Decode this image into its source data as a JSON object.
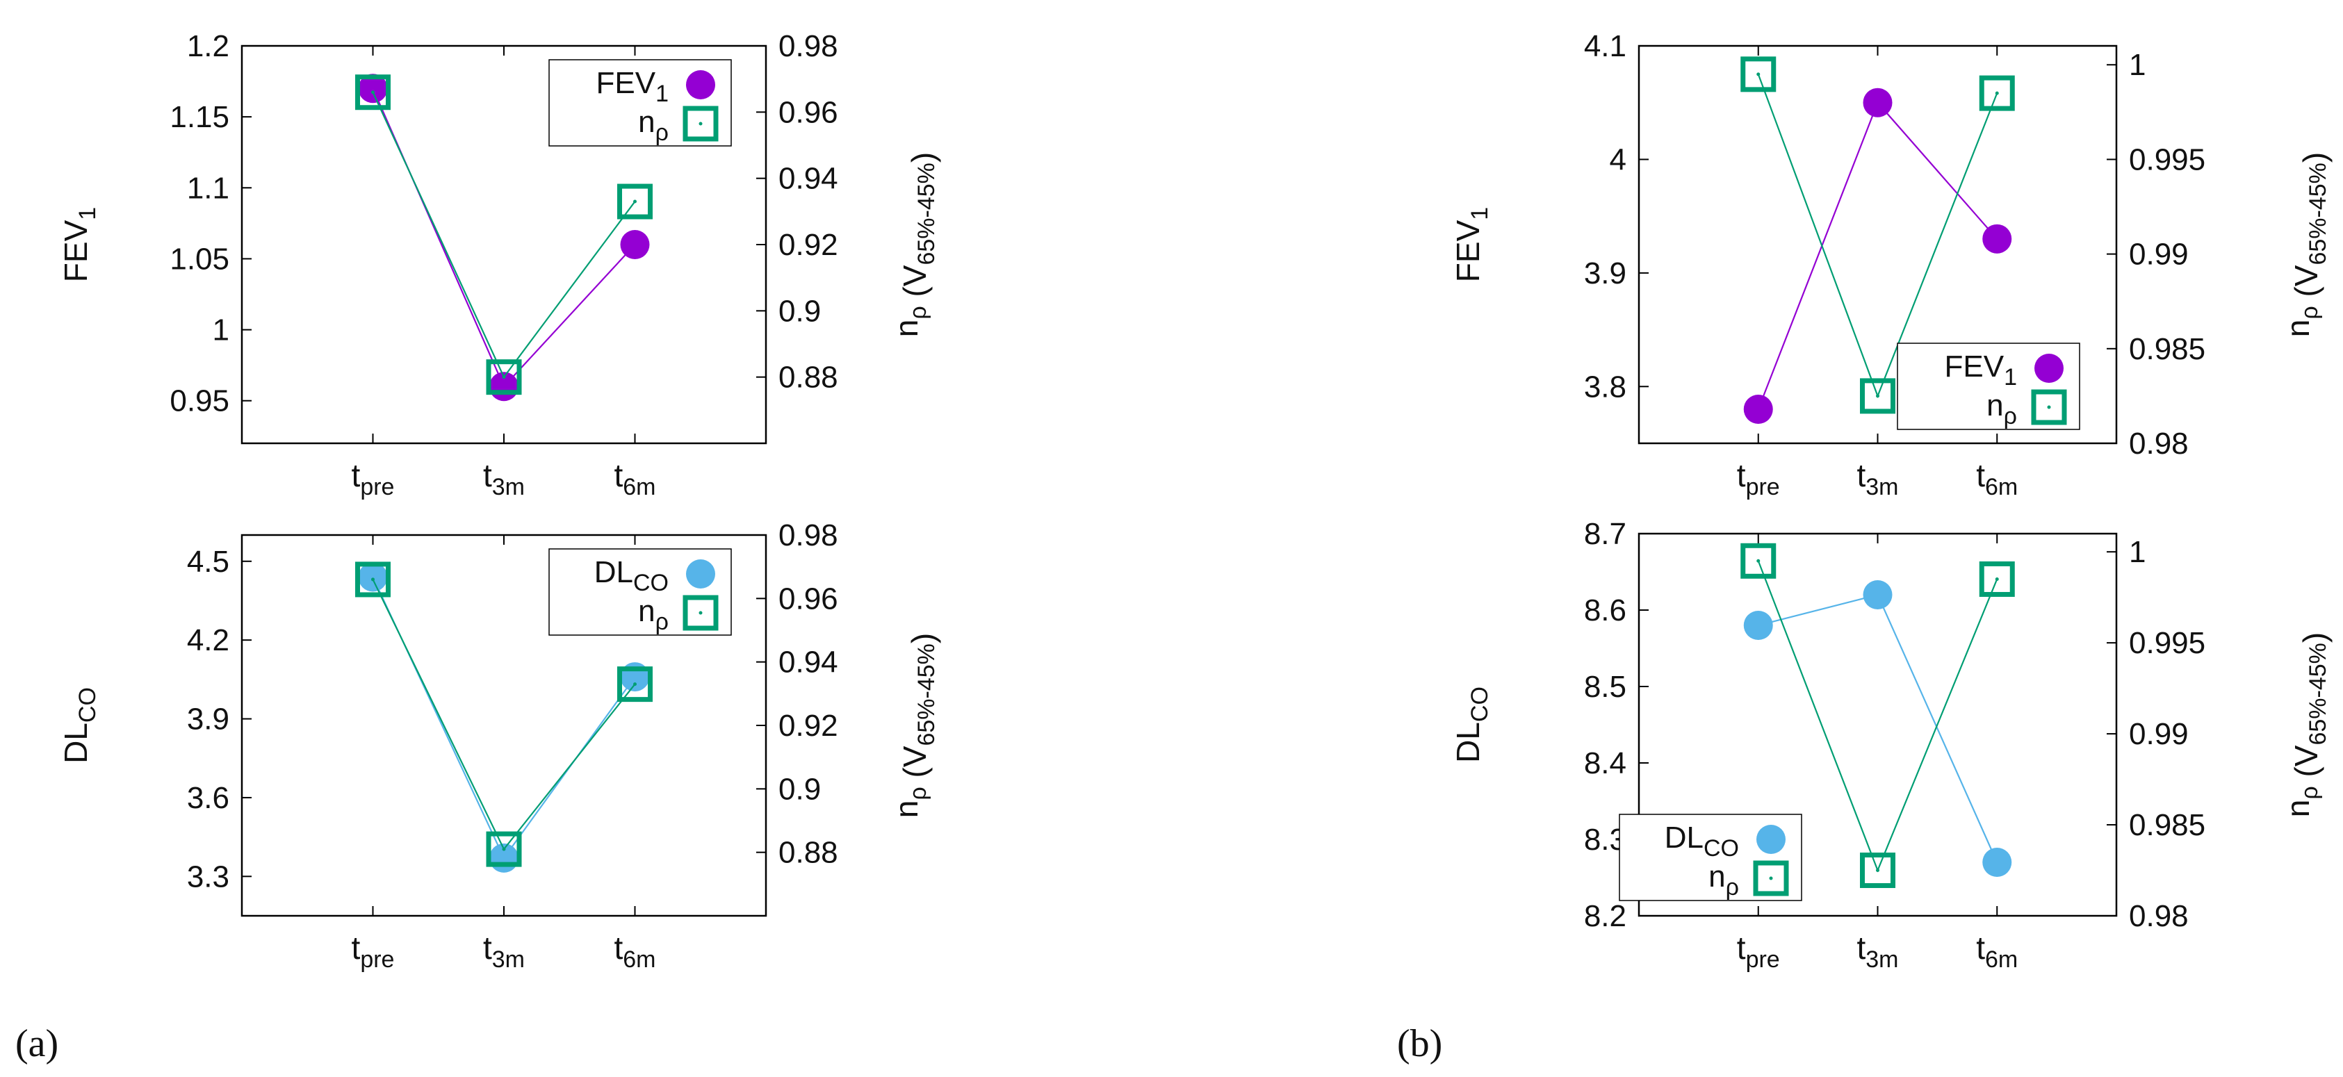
{
  "panel_labels": {
    "a": "(a)",
    "b": "(b)"
  },
  "colors": {
    "fev": "#9400d3",
    "dlco": "#56b4e9",
    "n_rho": "#009e73",
    "grid": "#000000"
  },
  "chart_data": [
    {
      "id": "a-top",
      "type": "line",
      "categories": [
        "t_pre",
        "t_3m",
        "t_6m"
      ],
      "ylabel": "FEV_1",
      "y2label": "n_ρ (V_65%-45%)",
      "ylim": [
        0.92,
        1.2
      ],
      "y2lim": [
        0.86,
        0.98
      ],
      "yticks": [
        0.95,
        1,
        1.05,
        1.1,
        1.15,
        1.2
      ],
      "yticklabels": [
        "0.95",
        "1",
        "1.05",
        "1.1",
        "1.15",
        "1.2"
      ],
      "y2ticks": [
        0.88,
        0.9,
        0.92,
        0.94,
        0.96,
        0.98
      ],
      "y2ticklabels": [
        "0.88",
        "0.9",
        "0.92",
        "0.94",
        "0.96",
        "0.98"
      ],
      "series": [
        {
          "name": "FEV_1",
          "axis": "y1",
          "marker": "circle",
          "color": "#9400d3",
          "values": [
            1.17,
            0.96,
            1.06
          ]
        },
        {
          "name": "n_ρ",
          "axis": "y2",
          "marker": "square",
          "color": "#009e73",
          "values": [
            0.966,
            0.88,
            0.933
          ]
        }
      ],
      "legend": "top-right"
    },
    {
      "id": "a-bottom",
      "type": "line",
      "categories": [
        "t_pre",
        "t_3m",
        "t_6m"
      ],
      "ylabel": "DL_CO",
      "y2label": "n_ρ (V_65%-45%)",
      "ylim": [
        3.15,
        4.6
      ],
      "y2lim": [
        0.86,
        0.98
      ],
      "yticks": [
        3.3,
        3.6,
        3.9,
        4.2,
        4.5
      ],
      "yticklabels": [
        "3.3",
        "3.6",
        "3.9",
        "4.2",
        "4.5"
      ],
      "y2ticks": [
        0.88,
        0.9,
        0.92,
        0.94,
        0.96,
        0.98
      ],
      "y2ticklabels": [
        "0.88",
        "0.9",
        "0.92",
        "0.94",
        "0.96",
        "0.98"
      ],
      "series": [
        {
          "name": "DL_CO",
          "axis": "y1",
          "marker": "circle",
          "color": "#56b4e9",
          "values": [
            4.44,
            3.37,
            4.06
          ]
        },
        {
          "name": "n_ρ",
          "axis": "y2",
          "marker": "square",
          "color": "#009e73",
          "values": [
            0.966,
            0.881,
            0.933
          ]
        }
      ],
      "legend": "top-right"
    },
    {
      "id": "b-top",
      "type": "line",
      "categories": [
        "t_pre",
        "t_3m",
        "t_6m"
      ],
      "ylabel": "FEV_1",
      "y2label": "n_ρ (V_65%-45%)",
      "ylim": [
        3.75,
        4.1
      ],
      "y2lim": [
        0.98,
        1.001
      ],
      "yticks": [
        3.8,
        3.9,
        4,
        4.1
      ],
      "yticklabels": [
        "3.8",
        "3.9",
        "4",
        "4.1"
      ],
      "y2ticks": [
        0.98,
        0.985,
        0.99,
        0.995,
        1
      ],
      "y2ticklabels": [
        "0.98",
        "0.985",
        "0.99",
        "0.995",
        "1"
      ],
      "series": [
        {
          "name": "FEV_1",
          "axis": "y1",
          "marker": "circle",
          "color": "#9400d3",
          "values": [
            3.78,
            4.05,
            3.93
          ]
        },
        {
          "name": "n_ρ",
          "axis": "y2",
          "marker": "square",
          "color": "#009e73",
          "values": [
            0.9995,
            0.9825,
            0.9985
          ]
        }
      ],
      "legend": "bottom-right"
    },
    {
      "id": "b-bottom",
      "type": "line",
      "categories": [
        "t_pre",
        "t_3m",
        "t_6m"
      ],
      "ylabel": "DL_CO",
      "y2label": "n_ρ (V_65%-45%)",
      "ylim": [
        8.2,
        8.7
      ],
      "y2lim": [
        0.98,
        1.001
      ],
      "yticks": [
        8.2,
        8.3,
        8.4,
        8.5,
        8.6,
        8.7
      ],
      "yticklabels": [
        "8.2",
        "8.3",
        "8.4",
        "8.5",
        "8.6",
        "8.7"
      ],
      "y2ticks": [
        0.98,
        0.985,
        0.99,
        0.995,
        1
      ],
      "y2ticklabels": [
        "0.98",
        "0.985",
        "0.99",
        "0.995",
        "1"
      ],
      "series": [
        {
          "name": "DL_CO",
          "axis": "y1",
          "marker": "circle",
          "color": "#56b4e9",
          "values": [
            8.58,
            8.62,
            8.27
          ]
        },
        {
          "name": "n_ρ",
          "axis": "y2",
          "marker": "square",
          "color": "#009e73",
          "values": [
            0.9995,
            0.9825,
            0.9985
          ]
        }
      ],
      "legend": "bottom-left"
    }
  ]
}
